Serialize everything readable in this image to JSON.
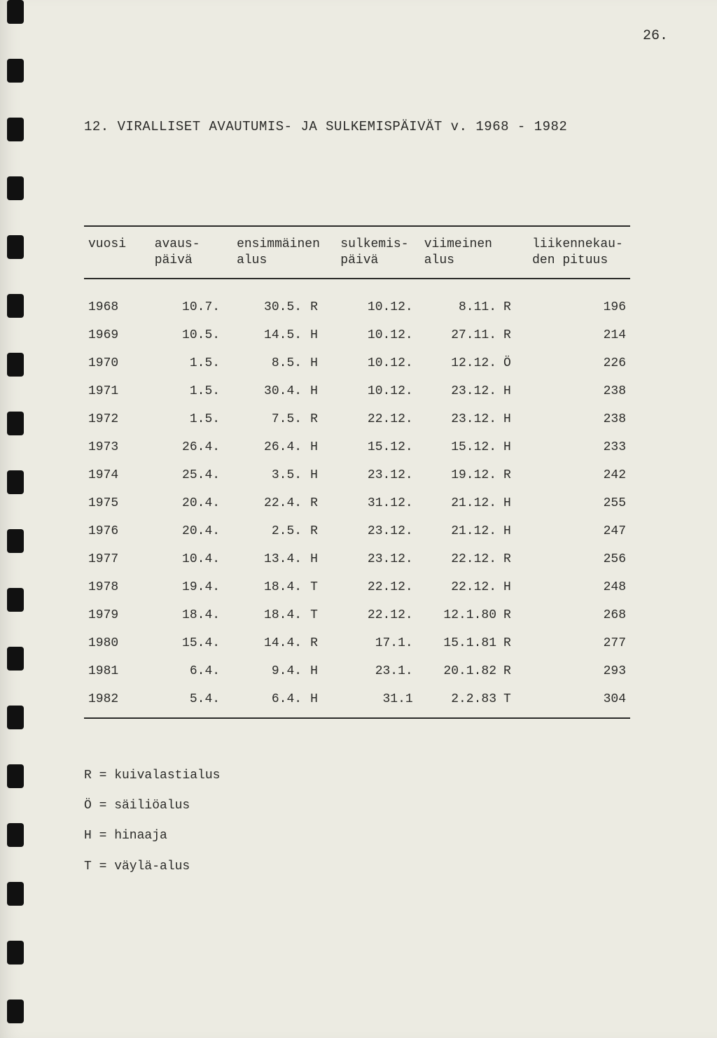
{
  "page_number": "26.",
  "title": "12.  VIRALLISET AVAUTUMIS- JA SULKEMISPÄIVÄT v. 1968 - 1982",
  "columns": {
    "year": "vuosi",
    "open_day": "avaus-\npäivä",
    "first_ship": "ensimmäinen\nalus",
    "close_day": "sulkemis-\npäivä",
    "last_ship": "viimeinen\nalus",
    "length": "liikennekau-\nden pituus"
  },
  "rows": [
    {
      "year": "1968",
      "open": "10.7.",
      "first": "30.5.",
      "first_code": "R",
      "close": "10.12.",
      "last": "8.11.",
      "last_code": "R",
      "len": "196"
    },
    {
      "year": "1969",
      "open": "10.5.",
      "first": "14.5.",
      "first_code": "H",
      "close": "10.12.",
      "last": "27.11.",
      "last_code": "R",
      "len": "214"
    },
    {
      "year": "1970",
      "open": "1.5.",
      "first": "8.5.",
      "first_code": "H",
      "close": "10.12.",
      "last": "12.12.",
      "last_code": "Ö",
      "len": "226"
    },
    {
      "year": "1971",
      "open": "1.5.",
      "first": "30.4.",
      "first_code": "H",
      "close": "10.12.",
      "last": "23.12.",
      "last_code": "H",
      "len": "238"
    },
    {
      "year": "1972",
      "open": "1.5.",
      "first": "7.5.",
      "first_code": "R",
      "close": "22.12.",
      "last": "23.12.",
      "last_code": "H",
      "len": "238"
    },
    {
      "year": "1973",
      "open": "26.4.",
      "first": "26.4.",
      "first_code": "H",
      "close": "15.12.",
      "last": "15.12.",
      "last_code": "H",
      "len": "233"
    },
    {
      "year": "1974",
      "open": "25.4.",
      "first": "3.5.",
      "first_code": "H",
      "close": "23.12.",
      "last": "19.12.",
      "last_code": "R",
      "len": "242"
    },
    {
      "year": "1975",
      "open": "20.4.",
      "first": "22.4.",
      "first_code": "R",
      "close": "31.12.",
      "last": "21.12.",
      "last_code": "H",
      "len": "255"
    },
    {
      "year": "1976",
      "open": "20.4.",
      "first": "2.5.",
      "first_code": "R",
      "close": "23.12.",
      "last": "21.12.",
      "last_code": "H",
      "len": "247"
    },
    {
      "year": "1977",
      "open": "10.4.",
      "first": "13.4.",
      "first_code": "H",
      "close": "23.12.",
      "last": "22.12.",
      "last_code": "R",
      "len": "256"
    },
    {
      "year": "1978",
      "open": "19.4.",
      "first": "18.4.",
      "first_code": "T",
      "close": "22.12.",
      "last": "22.12.",
      "last_code": "H",
      "len": "248"
    },
    {
      "year": "1979",
      "open": "18.4.",
      "first": "18.4.",
      "first_code": "T",
      "close": "22.12.",
      "last": "12.1.80",
      "last_code": "R",
      "len": "268"
    },
    {
      "year": "1980",
      "open": "15.4.",
      "first": "14.4.",
      "first_code": "R",
      "close": "17.1.",
      "last": "15.1.81",
      "last_code": "R",
      "len": "277"
    },
    {
      "year": "1981",
      "open": "6.4.",
      "first": "9.4.",
      "first_code": "H",
      "close": "23.1.",
      "last": "20.1.82",
      "last_code": "R",
      "len": "293"
    },
    {
      "year": "1982",
      "open": "5.4.",
      "first": "6.4.",
      "first_code": "H",
      "close": "31.1",
      "last": "2.2.83",
      "last_code": "T",
      "len": "304"
    }
  ],
  "legend": [
    "R = kuivalastialus",
    "Ö = säiliöalus",
    "H = hinaaja",
    "T = väylä-alus"
  ]
}
